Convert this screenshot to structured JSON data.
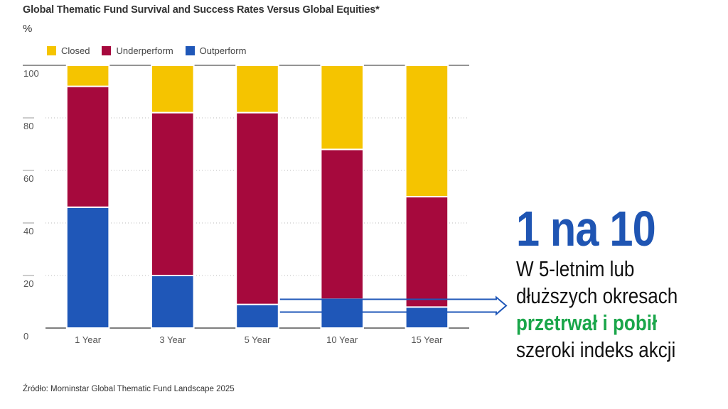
{
  "title": "Global Thematic Fund Survival and Success Rates Versus Global Equities*",
  "y_unit": "%",
  "legend": [
    {
      "label": "Closed",
      "color": "#f5c400"
    },
    {
      "label": "Underperform",
      "color": "#a6093d"
    },
    {
      "label": "Outperform",
      "color": "#1f57b8"
    }
  ],
  "chart_data": {
    "type": "bar",
    "stacked": true,
    "categories": [
      "1 Year",
      "3 Year",
      "5 Year",
      "10 Year",
      "15 Year"
    ],
    "series": [
      {
        "name": "Outperform",
        "color": "#1f57b8",
        "values": [
          46,
          20,
          9,
          11,
          8
        ]
      },
      {
        "name": "Underperform",
        "color": "#a6093d",
        "values": [
          46,
          62,
          73,
          57,
          42
        ]
      },
      {
        "name": "Closed",
        "color": "#f5c400",
        "values": [
          8,
          18,
          18,
          32,
          50
        ]
      }
    ],
    "ylim": [
      0,
      100
    ],
    "yticks": [
      0,
      20,
      40,
      60,
      80,
      100
    ],
    "ytick_labels": [
      "0",
      "20",
      "40",
      "60",
      "80",
      "100"
    ],
    "grid": "dotted horizontal",
    "legend_position": "top-left",
    "annotation_arrow": "from 5 Year to 15 Year bars, pointing right"
  },
  "callout": {
    "headline": "1 na 10",
    "line1": "W 5-letnim lub",
    "line2": "dłuższych okresach",
    "line3": "przetrwał i pobił",
    "line4": "szeroki indeks akcji"
  },
  "source": "Źródło: Morninstar Global Thematic Fund Landscape 2025"
}
